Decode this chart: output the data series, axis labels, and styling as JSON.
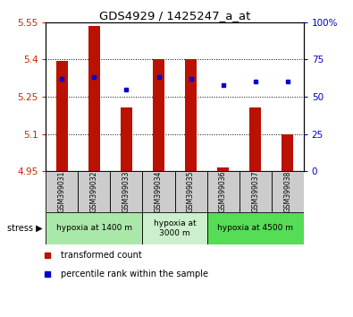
{
  "title": "GDS4929 / 1425247_a_at",
  "samples": [
    "GSM399031",
    "GSM399032",
    "GSM399033",
    "GSM399034",
    "GSM399035",
    "GSM399036",
    "GSM399037",
    "GSM399038"
  ],
  "red_values": [
    5.395,
    5.535,
    5.205,
    5.4,
    5.4,
    4.965,
    5.205,
    5.1
  ],
  "blue_values_pct": [
    62,
    63,
    55,
    63,
    62,
    58,
    60,
    60
  ],
  "ylim_left": [
    4.95,
    5.55
  ],
  "ylim_right": [
    0,
    100
  ],
  "yticks_left": [
    4.95,
    5.1,
    5.25,
    5.4,
    5.55
  ],
  "yticks_right": [
    0,
    25,
    50,
    75,
    100
  ],
  "ytick_labels_left": [
    "4.95",
    "5.1",
    "5.25",
    "5.4",
    "5.55"
  ],
  "ytick_labels_right": [
    "0",
    "25",
    "50",
    "75",
    "100%"
  ],
  "groups": [
    {
      "label": "hypoxia at 1400 m",
      "start": 0,
      "end": 3,
      "color": "#aae8aa"
    },
    {
      "label": "hypoxia at\n3000 m",
      "start": 3,
      "end": 5,
      "color": "#ccf0cc"
    },
    {
      "label": "hypoxia at 4500 m",
      "start": 5,
      "end": 8,
      "color": "#55dd55"
    }
  ],
  "bar_color": "#bb1100",
  "dot_color": "#0000cc",
  "bar_width": 0.35,
  "bar_bottom": 4.95,
  "legend_red": "transformed count",
  "legend_blue": "percentile rank within the sample",
  "left_tick_color": "#cc2200",
  "right_tick_color": "#0000cc"
}
